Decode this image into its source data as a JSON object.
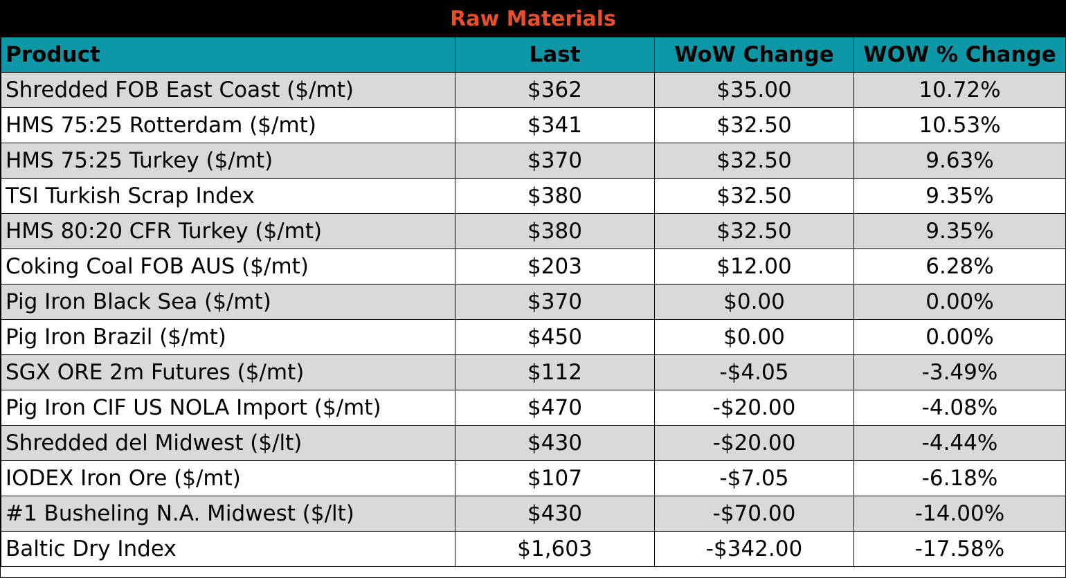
{
  "chart_data": {
    "type": "table",
    "title": "Raw Materials",
    "columns": [
      "Product",
      "Last",
      "WoW Change",
      "WOW % Change"
    ],
    "rows": [
      [
        "Shredded FOB East Coast ($/mt)",
        "$362",
        "$35.00",
        "10.72%"
      ],
      [
        "HMS 75:25 Rotterdam ($/mt)",
        "$341",
        "$32.50",
        "10.53%"
      ],
      [
        "HMS 75:25 Turkey ($/mt)",
        "$370",
        "$32.50",
        "9.63%"
      ],
      [
        "TSI Turkish Scrap Index",
        "$380",
        "$32.50",
        "9.35%"
      ],
      [
        "HMS 80:20 CFR Turkey ($/mt)",
        "$380",
        "$32.50",
        "9.35%"
      ],
      [
        "Coking Coal FOB AUS ($/mt)",
        "$203",
        "$12.00",
        "6.28%"
      ],
      [
        "Pig Iron Black Sea ($/mt)",
        "$370",
        "$0.00",
        "0.00%"
      ],
      [
        "Pig Iron Brazil ($/mt)",
        "$450",
        "$0.00",
        "0.00%"
      ],
      [
        "SGX ORE 2m Futures ($/mt)",
        "$112",
        "-$4.05",
        "-3.49%"
      ],
      [
        "Pig Iron CIF US NOLA Import ($/mt)",
        "$470",
        "-$20.00",
        "-4.08%"
      ],
      [
        "Shredded del  Midwest ($/lt)",
        "$430",
        "-$20.00",
        "-4.44%"
      ],
      [
        "IODEX  Iron Ore ($/mt)",
        "$107",
        "-$7.05",
        "-6.18%"
      ],
      [
        "#1 Busheling N.A. Midwest ($/lt)",
        "$430",
        "-$70.00",
        "-14.00%"
      ],
      [
        "Baltic Dry Index",
        "$1,603",
        "-$342.00",
        "-17.58%"
      ]
    ]
  },
  "colors": {
    "title_bg": "#000000",
    "title_text": "#e8502a",
    "header_bg": "#0e97a6",
    "shade_row": "#d9d9d9",
    "plain_row": "#ffffff"
  }
}
